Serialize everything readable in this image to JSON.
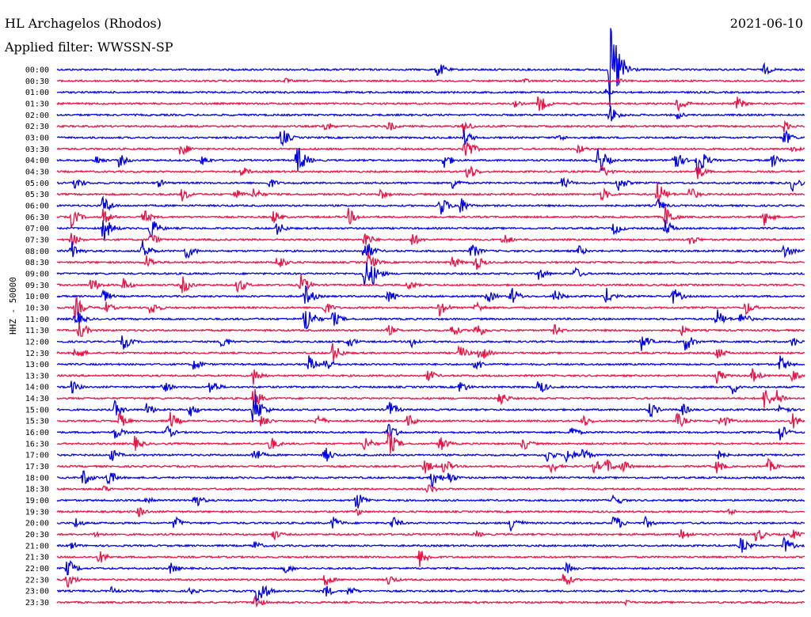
{
  "header": {
    "station": "HL Archagelos (Rhodos)",
    "filter": "Applied filter: WWSSN-SP",
    "date": "2021-06-10",
    "channel": "HHZ - 50000"
  },
  "colors": {
    "blue": "#0000ee",
    "red": "#ee1144"
  },
  "chart_data": {
    "type": "line",
    "title": "HL Archagelos (Rhodos)",
    "subtitle": "Applied filter: WWSSN-SP",
    "ylabel": "HHZ - 50000",
    "traces": [
      {
        "time": "00:00",
        "color": "blue",
        "events": [
          [
            552,
            12
          ],
          [
            770,
            60
          ],
          [
            778,
            40
          ],
          [
            965,
            8
          ]
        ]
      },
      {
        "time": "00:30",
        "color": "red",
        "events": [
          [
            360,
            4
          ],
          [
            660,
            5
          ],
          [
            780,
            4
          ]
        ]
      },
      {
        "time": "01:00",
        "color": "blue",
        "events": [
          [
            765,
            5
          ]
        ]
      },
      {
        "time": "01:30",
        "color": "red",
        "events": [
          [
            650,
            5
          ],
          [
            680,
            14
          ],
          [
            855,
            14
          ],
          [
            930,
            10
          ]
        ]
      },
      {
        "time": "02:00",
        "color": "blue",
        "events": [
          [
            770,
            14
          ],
          [
            855,
            6
          ]
        ]
      },
      {
        "time": "02:30",
        "color": "red",
        "events": [
          [
            410,
            8
          ],
          [
            490,
            8
          ],
          [
            585,
            10
          ],
          [
            990,
            8
          ]
        ]
      },
      {
        "time": "03:00",
        "color": "blue",
        "events": [
          [
            355,
            14
          ],
          [
            585,
            12
          ],
          [
            705,
            6
          ],
          [
            990,
            12
          ]
        ]
      },
      {
        "time": "03:30",
        "color": "red",
        "events": [
          [
            228,
            12
          ],
          [
            585,
            22
          ],
          [
            730,
            8
          ],
          [
            1000,
            6
          ]
        ]
      },
      {
        "time": "04:00",
        "color": "blue",
        "events": [
          [
            120,
            8
          ],
          [
            150,
            10
          ],
          [
            255,
            8
          ],
          [
            375,
            24
          ],
          [
            560,
            12
          ],
          [
            755,
            22
          ],
          [
            850,
            18
          ],
          [
            880,
            24
          ],
          [
            975,
            10
          ]
        ]
      },
      {
        "time": "04:30",
        "color": "red",
        "events": [
          [
            305,
            8
          ],
          [
            590,
            14
          ],
          [
            760,
            10
          ],
          [
            880,
            12
          ]
        ]
      },
      {
        "time": "05:00",
        "color": "blue",
        "events": [
          [
            95,
            10
          ],
          [
            200,
            6
          ],
          [
            340,
            8
          ],
          [
            570,
            10
          ],
          [
            710,
            10
          ],
          [
            780,
            12
          ],
          [
            1000,
            12
          ]
        ]
      },
      {
        "time": "05:30",
        "color": "red",
        "events": [
          [
            230,
            10
          ],
          [
            295,
            10
          ],
          [
            320,
            10
          ],
          [
            480,
            8
          ],
          [
            760,
            10
          ],
          [
            830,
            18
          ],
          [
            870,
            12
          ]
        ]
      },
      {
        "time": "06:00",
        "color": "blue",
        "events": [
          [
            130,
            14
          ],
          [
            555,
            16
          ],
          [
            580,
            14
          ],
          [
            830,
            10
          ]
        ]
      },
      {
        "time": "06:30",
        "color": "red",
        "events": [
          [
            90,
            14
          ],
          [
            130,
            12
          ],
          [
            180,
            12
          ],
          [
            345,
            10
          ],
          [
            440,
            12
          ],
          [
            840,
            16
          ],
          [
            965,
            12
          ]
        ]
      },
      {
        "time": "07:00",
        "color": "blue",
        "events": [
          [
            130,
            20
          ],
          [
            190,
            16
          ],
          [
            350,
            10
          ],
          [
            775,
            10
          ],
          [
            840,
            12
          ]
        ]
      },
      {
        "time": "07:30",
        "color": "red",
        "events": [
          [
            90,
            10
          ],
          [
            190,
            10
          ],
          [
            460,
            12
          ],
          [
            520,
            10
          ],
          [
            635,
            10
          ],
          [
            870,
            10
          ]
        ]
      },
      {
        "time": "08:00",
        "color": "blue",
        "events": [
          [
            90,
            14
          ],
          [
            180,
            14
          ],
          [
            235,
            12
          ],
          [
            460,
            18
          ],
          [
            595,
            12
          ],
          [
            730,
            8
          ],
          [
            990,
            12
          ]
        ]
      },
      {
        "time": "08:30",
        "color": "red",
        "events": [
          [
            185,
            10
          ],
          [
            350,
            12
          ],
          [
            465,
            14
          ],
          [
            570,
            10
          ],
          [
            600,
            12
          ]
        ]
      },
      {
        "time": "09:00",
        "color": "blue",
        "events": [
          [
            460,
            22
          ],
          [
            470,
            16
          ],
          [
            680,
            10
          ],
          [
            725,
            10
          ]
        ]
      },
      {
        "time": "09:30",
        "color": "red",
        "events": [
          [
            115,
            12
          ],
          [
            155,
            10
          ],
          [
            230,
            14
          ],
          [
            300,
            12
          ],
          [
            380,
            14
          ],
          [
            515,
            8
          ]
        ]
      },
      {
        "time": "10:00",
        "color": "blue",
        "events": [
          [
            130,
            10
          ],
          [
            385,
            16
          ],
          [
            490,
            10
          ],
          [
            615,
            10
          ],
          [
            645,
            14
          ],
          [
            700,
            10
          ],
          [
            765,
            12
          ],
          [
            850,
            12
          ]
        ]
      },
      {
        "time": "10:30",
        "color": "red",
        "events": [
          [
            95,
            16
          ],
          [
            130,
            12
          ],
          [
            190,
            12
          ],
          [
            410,
            10
          ],
          [
            555,
            12
          ],
          [
            600,
            10
          ],
          [
            940,
            12
          ]
        ]
      },
      {
        "time": "11:00",
        "color": "blue",
        "events": [
          [
            95,
            14
          ],
          [
            385,
            24
          ],
          [
            420,
            12
          ],
          [
            905,
            14
          ],
          [
            935,
            12
          ]
        ]
      },
      {
        "time": "11:30",
        "color": "red",
        "events": [
          [
            100,
            14
          ],
          [
            490,
            8
          ],
          [
            570,
            10
          ],
          [
            600,
            14
          ],
          [
            700,
            8
          ],
          [
            860,
            8
          ]
        ]
      },
      {
        "time": "12:00",
        "color": "blue",
        "events": [
          [
            155,
            12
          ],
          [
            280,
            10
          ],
          [
            440,
            8
          ],
          [
            520,
            8
          ],
          [
            810,
            12
          ],
          [
            865,
            14
          ],
          [
            1000,
            8
          ]
        ]
      },
      {
        "time": "12:30",
        "color": "red",
        "events": [
          [
            95,
            12
          ],
          [
            420,
            14
          ],
          [
            580,
            12
          ],
          [
            605,
            14
          ],
          [
            905,
            10
          ]
        ]
      },
      {
        "time": "13:00",
        "color": "blue",
        "events": [
          [
            245,
            10
          ],
          [
            390,
            12
          ],
          [
            410,
            12
          ],
          [
            600,
            10
          ],
          [
            985,
            12
          ]
        ]
      },
      {
        "time": "13:30",
        "color": "red",
        "events": [
          [
            320,
            12
          ],
          [
            540,
            10
          ],
          [
            905,
            10
          ],
          [
            950,
            10
          ],
          [
            1000,
            8
          ]
        ]
      },
      {
        "time": "14:00",
        "color": "blue",
        "events": [
          [
            90,
            10
          ],
          [
            205,
            10
          ],
          [
            265,
            12
          ],
          [
            580,
            10
          ],
          [
            680,
            12
          ],
          [
            925,
            10
          ]
        ]
      },
      {
        "time": "14:30",
        "color": "red",
        "events": [
          [
            320,
            16
          ],
          [
            630,
            12
          ],
          [
            965,
            16
          ],
          [
            980,
            12
          ]
        ]
      },
      {
        "time": "15:00",
        "color": "blue",
        "events": [
          [
            145,
            12
          ],
          [
            185,
            10
          ],
          [
            240,
            10
          ],
          [
            320,
            28
          ],
          [
            490,
            14
          ],
          [
            820,
            12
          ],
          [
            860,
            10
          ],
          [
            985,
            10
          ]
        ]
      },
      {
        "time": "15:30",
        "color": "red",
        "events": [
          [
            150,
            12
          ],
          [
            215,
            12
          ],
          [
            330,
            10
          ],
          [
            400,
            10
          ],
          [
            515,
            10
          ],
          [
            735,
            10
          ],
          [
            855,
            12
          ],
          [
            910,
            12
          ],
          [
            1000,
            12
          ]
        ]
      },
      {
        "time": "16:00",
        "color": "blue",
        "events": [
          [
            145,
            10
          ],
          [
            210,
            10
          ],
          [
            490,
            14
          ],
          [
            720,
            10
          ],
          [
            985,
            12
          ]
        ]
      },
      {
        "time": "16:30",
        "color": "red",
        "events": [
          [
            170,
            10
          ],
          [
            340,
            12
          ],
          [
            460,
            12
          ],
          [
            490,
            20
          ],
          [
            555,
            12
          ],
          [
            660,
            10
          ]
        ]
      },
      {
        "time": "17:00",
        "color": "blue",
        "events": [
          [
            140,
            10
          ],
          [
            320,
            12
          ],
          [
            410,
            12
          ],
          [
            690,
            10
          ],
          [
            715,
            12
          ],
          [
            735,
            12
          ],
          [
            905,
            8
          ]
        ]
      },
      {
        "time": "17:30",
        "color": "red",
        "events": [
          [
            535,
            12
          ],
          [
            560,
            12
          ],
          [
            695,
            10
          ],
          [
            750,
            10
          ],
          [
            765,
            12
          ],
          [
            785,
            10
          ],
          [
            905,
            10
          ],
          [
            970,
            10
          ]
        ]
      },
      {
        "time": "18:00",
        "color": "blue",
        "events": [
          [
            105,
            12
          ],
          [
            135,
            14
          ],
          [
            545,
            14
          ],
          [
            565,
            10
          ]
        ]
      },
      {
        "time": "18:30",
        "color": "red",
        "events": [
          [
            130,
            6
          ],
          [
            540,
            8
          ]
        ]
      },
      {
        "time": "19:00",
        "color": "blue",
        "events": [
          [
            185,
            8
          ],
          [
            245,
            12
          ],
          [
            450,
            14
          ],
          [
            775,
            10
          ]
        ]
      },
      {
        "time": "19:30",
        "color": "red",
        "events": [
          [
            175,
            8
          ],
          [
            450,
            6
          ],
          [
            920,
            6
          ]
        ]
      },
      {
        "time": "20:00",
        "color": "blue",
        "events": [
          [
            95,
            8
          ],
          [
            220,
            10
          ],
          [
            420,
            10
          ],
          [
            495,
            10
          ],
          [
            645,
            14
          ],
          [
            775,
            14
          ],
          [
            815,
            8
          ]
        ]
      },
      {
        "time": "20:30",
        "color": "red",
        "events": [
          [
            120,
            6
          ],
          [
            345,
            8
          ],
          [
            600,
            6
          ],
          [
            860,
            10
          ],
          [
            955,
            12
          ],
          [
            1000,
            8
          ]
        ]
      },
      {
        "time": "21:00",
        "color": "blue",
        "events": [
          [
            90,
            6
          ],
          [
            320,
            8
          ],
          [
            935,
            12
          ],
          [
            990,
            12
          ]
        ]
      },
      {
        "time": "21:30",
        "color": "red",
        "events": [
          [
            125,
            10
          ],
          [
            530,
            14
          ]
        ]
      },
      {
        "time": "22:00",
        "color": "blue",
        "events": [
          [
            85,
            14
          ],
          [
            215,
            8
          ],
          [
            360,
            8
          ],
          [
            715,
            8
          ]
        ]
      },
      {
        "time": "22:30",
        "color": "red",
        "events": [
          [
            85,
            12
          ],
          [
            410,
            10
          ],
          [
            490,
            8
          ],
          [
            710,
            14
          ]
        ]
      },
      {
        "time": "23:00",
        "color": "blue",
        "events": [
          [
            140,
            6
          ],
          [
            240,
            6
          ],
          [
            325,
            24
          ],
          [
            410,
            10
          ],
          [
            440,
            8
          ]
        ]
      },
      {
        "time": "23:30",
        "color": "red",
        "events": [
          [
            320,
            12
          ],
          [
            790,
            4
          ]
        ]
      }
    ]
  }
}
